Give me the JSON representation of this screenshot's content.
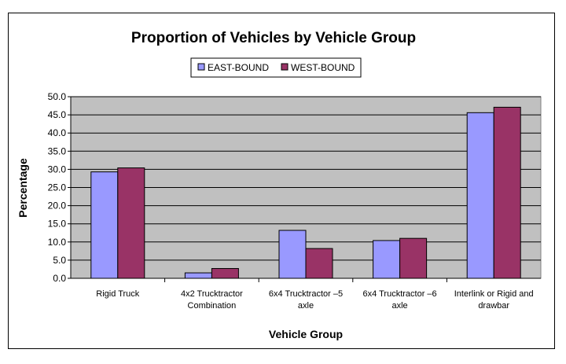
{
  "chart_data": {
    "type": "bar",
    "title": "Proportion of Vehicles by Vehicle Group",
    "xlabel": "Vehicle Group",
    "ylabel": "Percentage",
    "ylim": [
      0,
      50
    ],
    "yticks": [
      "0.0",
      "5.0",
      "10.0",
      "15.0",
      "20.0",
      "25.0",
      "30.0",
      "35.0",
      "40.0",
      "45.0",
      "50.0"
    ],
    "grid": true,
    "legend_position": "top",
    "plot_background": "#c0c0c0",
    "categories": [
      [
        "Rigid Truck"
      ],
      [
        "4x2 Trucktractor",
        "Combination"
      ],
      [
        "6x4 Trucktractor –5",
        "axle"
      ],
      [
        "6x4 Trucktractor –6",
        "axle"
      ],
      [
        "Interlink or Rigid and",
        "drawbar"
      ]
    ],
    "series": [
      {
        "name": "EAST-BOUND",
        "color": "#9999ff",
        "values": [
          29.3,
          1.5,
          13.2,
          10.4,
          45.6
        ]
      },
      {
        "name": "WEST-BOUND",
        "color": "#993366",
        "values": [
          30.4,
          2.7,
          8.2,
          11.0,
          47.1
        ]
      }
    ]
  }
}
